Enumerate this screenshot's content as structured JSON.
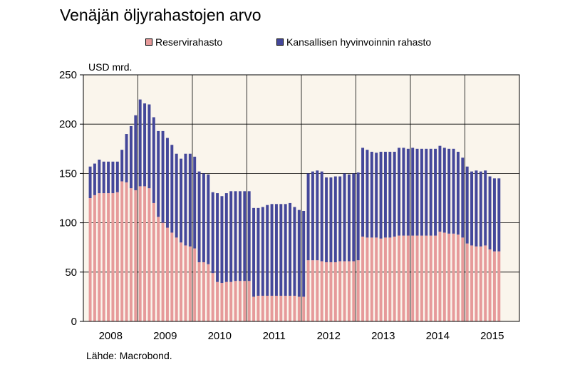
{
  "title": "Venäjän öljyrahastojen arvo",
  "source": "Lähde: Macrobond.",
  "colors": {
    "plot_bg": "#faf5ec",
    "reserve": "#e69a9a",
    "welfare": "#44479a",
    "grid": "#000000"
  },
  "chart_data": {
    "type": "bar",
    "stacked": true,
    "title": "Venäjän öljyrahastojen arvo",
    "ylabel": "USD mrd.",
    "xlabel": "",
    "ylim": [
      0,
      250
    ],
    "yticks": [
      0,
      50,
      100,
      150,
      200,
      250
    ],
    "grid": true,
    "legend_position": "top",
    "frequency": "monthly",
    "start": "2008-02",
    "x_tick_labels": [
      "2008",
      "2009",
      "2010",
      "2011",
      "2012",
      "2013",
      "2014",
      "2015"
    ],
    "series": [
      {
        "name": "Reservirahasto",
        "color": "#e69a9a",
        "values": [
          125,
          128,
          130,
          130,
          130,
          130,
          131,
          142,
          141,
          135,
          133,
          137,
          137,
          135,
          120,
          106,
          100,
          95,
          90,
          85,
          80,
          77,
          76,
          74,
          60,
          60,
          58,
          49,
          40,
          39,
          40,
          40,
          41,
          41,
          41,
          41,
          25,
          26,
          26,
          26,
          26,
          26,
          26,
          26,
          26,
          26,
          25,
          25,
          62,
          62,
          62,
          61,
          60,
          60,
          60,
          61,
          61,
          61,
          61,
          62,
          86,
          85,
          85,
          85,
          84,
          85,
          85,
          86,
          87,
          87,
          87,
          87,
          87,
          87,
          87,
          87,
          87,
          91,
          90,
          89,
          89,
          88,
          85,
          79,
          77,
          76,
          76,
          77,
          73,
          71,
          71
        ]
      },
      {
        "name": "Kansallisen hyvinvoinnin rahasto",
        "color": "#44479a",
        "values": [
          32,
          32,
          34,
          32,
          32,
          32,
          31,
          32,
          49,
          63,
          76,
          88,
          84,
          85,
          87,
          87,
          93,
          91,
          89,
          85,
          85,
          93,
          94,
          93,
          92,
          90,
          91,
          82,
          90,
          88,
          90,
          92,
          91,
          91,
          91,
          91,
          90,
          89,
          90,
          92,
          93,
          93,
          93,
          93,
          94,
          90,
          88,
          87,
          88,
          90,
          91,
          91,
          86,
          86,
          87,
          86,
          89,
          88,
          89,
          89,
          90,
          89,
          87,
          86,
          88,
          87,
          87,
          86,
          89,
          89,
          88,
          89,
          88,
          88,
          88,
          88,
          88,
          87,
          86,
          86,
          86,
          84,
          81,
          78,
          75,
          77,
          76,
          76,
          74,
          74,
          74
        ]
      }
    ]
  }
}
